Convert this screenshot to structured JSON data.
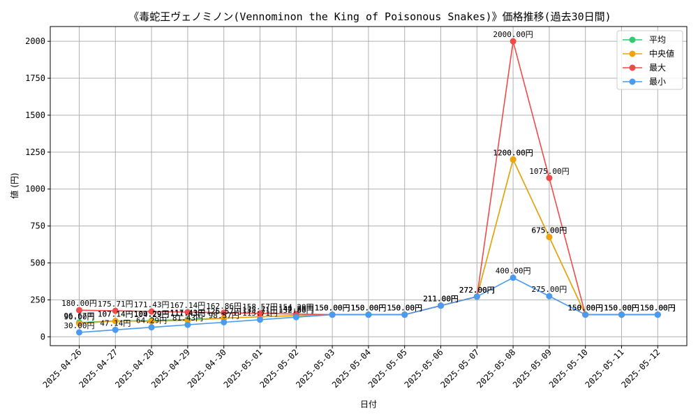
{
  "chart_data": {
    "type": "line",
    "title": "《毒蛇王ヴェノミノン(Vennominon the King of Poisonous Snakes)》価格推移(過去30日間)",
    "xlabel": "日付",
    "ylabel": "値 (円)",
    "ylim": [
      -60,
      2100
    ],
    "yticks": [
      0,
      250,
      500,
      750,
      1000,
      1250,
      1500,
      1750,
      2000
    ],
    "grid": true,
    "legend_position": "top-right",
    "categories": [
      "2025-04-26",
      "2025-04-27",
      "2025-04-28",
      "2025-04-29",
      "2025-04-30",
      "2025-05-01",
      "2025-05-02",
      "2025-05-03",
      "2025-05-04",
      "2025-05-05",
      "2025-05-06",
      "2025-05-07",
      "2025-05-08",
      "2025-05-09",
      "2025-05-10",
      "2025-05-11",
      "2025-05-12"
    ],
    "series": [
      {
        "name": "平均",
        "color": "#2ecc71",
        "values": [
          96.67,
          107.14,
          109.29,
          117.43,
          126.57,
          135.71,
          142.86,
          150,
          150,
          150,
          211,
          272,
          1200,
          675,
          150,
          150,
          150
        ],
        "labels": [
          "96.67円",
          "107.14円",
          "109.29円",
          "117.43円",
          "126.57円",
          "135.71円",
          "142.86円",
          "150.00円",
          "150.00円",
          "150.00円",
          "211.00円",
          "272.00円",
          "1200.00円",
          "675.00円",
          "150.00円",
          "150.00円",
          "150.00円"
        ]
      },
      {
        "name": "中央値",
        "color": "#f0a30a",
        "values": [
          90,
          107.14,
          104.29,
          111.43,
          125.57,
          135.71,
          144.29,
          150,
          150,
          150,
          211,
          272,
          1200,
          675,
          150,
          150,
          150
        ],
        "labels": [
          "90.00円",
          "107.14円",
          "104.29円",
          "111.43円",
          "125.57円",
          "135.71円",
          "144.29円",
          "150.00円",
          "150.00円",
          "150.00円",
          "211.00円",
          "272.00円",
          "1200.00円",
          "675.00円",
          "150.00円",
          "150.00円",
          "150.00円"
        ]
      },
      {
        "name": "最大",
        "color": "#f04a4a",
        "values": [
          180,
          175.71,
          171.43,
          167.14,
          162.86,
          158.57,
          154.29,
          150,
          150,
          150,
          211,
          272,
          2000,
          1075,
          150,
          150,
          150
        ],
        "labels": [
          "180.00円",
          "175.71円",
          "171.43円",
          "167.14円",
          "162.86円",
          "158.57円",
          "154.29円",
          "150.00円",
          "150.00円",
          "150.00円",
          "211.00円",
          "272.00円",
          "2000.00円",
          "1075.00円",
          "150.00円",
          "150.00円",
          "150.00円"
        ]
      },
      {
        "name": "最小",
        "color": "#4a9af0",
        "values": [
          30,
          47.14,
          64.29,
          81.43,
          98.57,
          115.71,
          132.86,
          150,
          150,
          150,
          211,
          272,
          400,
          275,
          150,
          150,
          150
        ],
        "labels": [
          "30.00円",
          "47.14円",
          "64.29円",
          "81.43円",
          "98.57円",
          "115.71円",
          "132.86円",
          "150.00円",
          "150.00円",
          "150.00円",
          "211.00円",
          "272.00円",
          "400.00円",
          "275.00円",
          "150.00円",
          "150.00円",
          "150.00円"
        ]
      }
    ]
  }
}
